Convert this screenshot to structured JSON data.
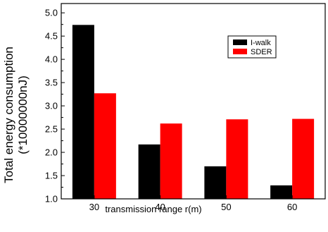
{
  "chart_data": {
    "type": "bar",
    "categories": [
      "30",
      "40",
      "50",
      "60"
    ],
    "series": [
      {
        "name": "I-walk",
        "color": "#000000",
        "values": [
          4.74,
          2.17,
          1.7,
          1.29
        ]
      },
      {
        "name": "SDER",
        "color": "#ff0000",
        "values": [
          3.27,
          2.62,
          2.71,
          2.72
        ]
      }
    ],
    "title": "",
    "xlabel": "transmission range r(m)",
    "ylabel_line1": "Total energy consumption",
    "ylabel_line2": "(*10000000nJ)",
    "ylim": [
      1.0,
      5.2
    ],
    "yticks": [
      "1.0",
      "1.5",
      "2.0",
      "2.5",
      "3.0",
      "3.5",
      "4.0",
      "4.5",
      "5.0"
    ],
    "grid": false,
    "legend_position": "top-right"
  }
}
